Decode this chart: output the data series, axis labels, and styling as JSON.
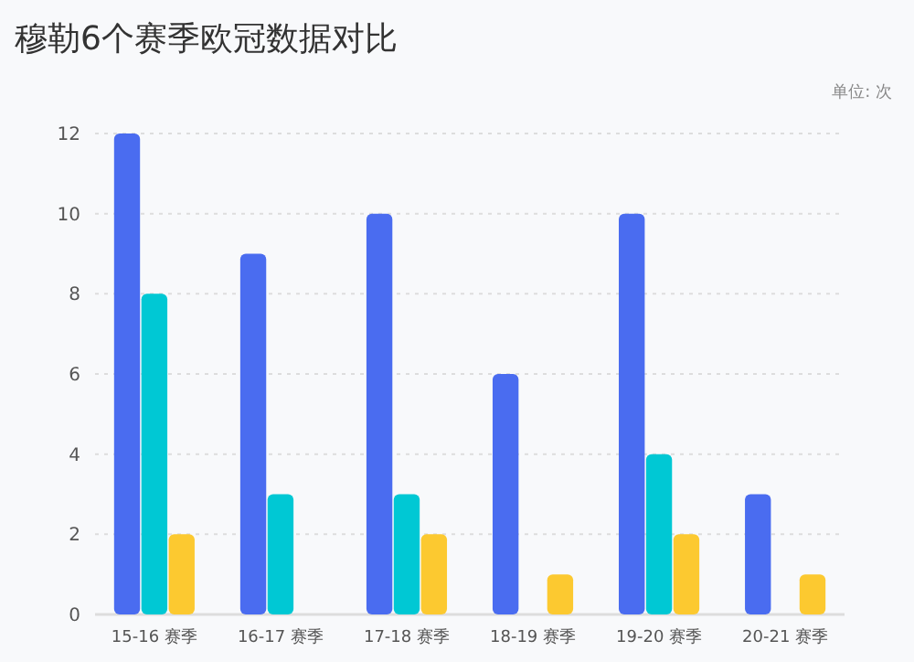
{
  "chart_data": {
    "type": "bar",
    "title": "穆勒6个赛季欧冠数据对比",
    "annotations": [
      "单位: 次"
    ],
    "categories": [
      "15-16 赛季",
      "16-17 赛季",
      "17-18 赛季",
      "18-19 赛季",
      "19-20 赛季",
      "20-21 赛季"
    ],
    "series": [
      {
        "color": "#4a6cf0",
        "values": [
          12,
          9,
          10,
          6,
          10,
          3
        ]
      },
      {
        "color": "#00c8d4",
        "values": [
          8,
          3,
          3,
          0,
          4,
          0
        ]
      },
      {
        "color": "#fcc930",
        "values": [
          2,
          0,
          2,
          1,
          2,
          1
        ]
      }
    ],
    "ylim": [
      0,
      12
    ],
    "yticks": [
      0,
      2,
      4,
      6,
      8,
      10,
      12
    ],
    "grid": "y"
  }
}
